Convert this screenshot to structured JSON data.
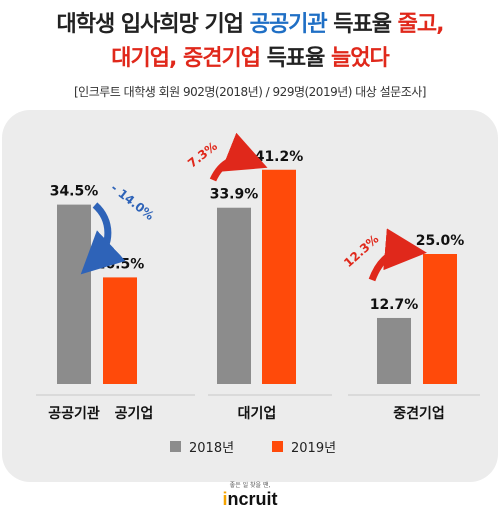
{
  "header": {
    "title_line1": {
      "prefix": "대학생 입사희망 기업 ",
      "highlight": "공공기관",
      "mid": " 득표율 ",
      "emphasis": "줄고,"
    },
    "title_line2": {
      "highlight": "대기업, 중견기업",
      "mid": " 득표율 ",
      "emphasis": "늘었다"
    },
    "subtitle": "[인크루트 대학생 회원 902명(2018년) / 929명(2019년) 대상 설문조사]"
  },
  "colors": {
    "series_2018": "#8c8c8c",
    "series_2019": "#ff4a0a",
    "down_arrow": "#2e63b8",
    "up_arrow": "#e0281b",
    "panel": "#ececec"
  },
  "chart_data": {
    "type": "bar",
    "groups": [
      {
        "label": "공공기관",
        "bars": [
          {
            "series": "2018년",
            "value": 34.5,
            "label": "34.5%"
          }
        ]
      },
      {
        "label": "공기업",
        "bars": [
          {
            "series": "2019년",
            "value": 20.5,
            "label": "20.5%"
          }
        ]
      },
      {
        "label": "대기업",
        "bars": [
          {
            "series": "2018년",
            "value": 33.9,
            "label": "33.9%"
          },
          {
            "series": "2019년",
            "value": 41.2,
            "label": "41.2%"
          }
        ]
      },
      {
        "label": "중견기업",
        "bars": [
          {
            "series": "2018년",
            "value": 12.7,
            "label": "12.7%"
          },
          {
            "series": "2019년",
            "value": 25.0,
            "label": "25.0%"
          }
        ]
      }
    ],
    "annotations": [
      {
        "text": "- 14.0%",
        "direction": "down"
      },
      {
        "text": "7.3%",
        "direction": "up"
      },
      {
        "text": "12.3%",
        "direction": "up"
      }
    ],
    "legend": [
      "2018년",
      "2019년"
    ],
    "legend_position": "bottom",
    "ylim": [
      0,
      45
    ],
    "grid": false
  },
  "footer": {
    "tagline": "좋은 일 찾을 땐,",
    "brand_prefix": "",
    "brand_dot": "i",
    "brand_rest": "ncruit"
  }
}
